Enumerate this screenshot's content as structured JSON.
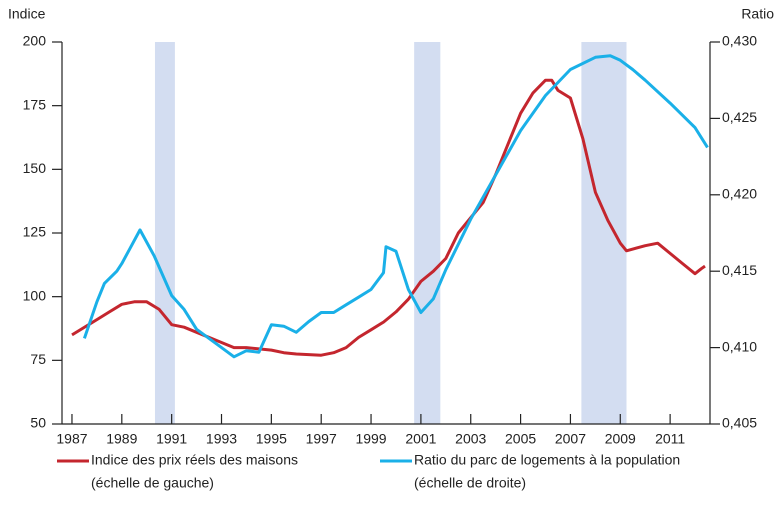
{
  "chart_data": {
    "type": "line",
    "left_axis_label": "Indice",
    "right_axis_label": "Ratio",
    "xlim": [
      1986.6,
      2012.6
    ],
    "xticks": [
      1987,
      1989,
      1991,
      1993,
      1995,
      1997,
      1999,
      2001,
      2003,
      2005,
      2007,
      2009,
      2011
    ],
    "ylim": [
      50,
      200
    ],
    "yticks": [
      50,
      75,
      100,
      125,
      150,
      175,
      200
    ],
    "y2lim": [
      0.405,
      0.43
    ],
    "y2ticks": [
      {
        "value": 0.405,
        "label": "0,405"
      },
      {
        "value": 0.41,
        "label": "0,410"
      },
      {
        "value": 0.415,
        "label": "0,415"
      },
      {
        "value": 0.42,
        "label": "0,420"
      },
      {
        "value": 0.425,
        "label": "0,425"
      },
      {
        "value": 0.43,
        "label": "0,430"
      }
    ],
    "shaded_periods": [
      [
        1990.33,
        1991.13
      ],
      [
        2000.73,
        2001.78
      ],
      [
        2007.44,
        2009.25
      ]
    ],
    "shade_color": "#d3ddf1",
    "series": [
      {
        "name": "Indice des prix réels des maisons",
        "note": "(échelle de gauche)",
        "color": "#c4262e",
        "axis": "y",
        "x": [
          1987,
          1988,
          1988.5,
          1989,
          1989.5,
          1990,
          1990.5,
          1991,
          1991.5,
          1992,
          1993,
          1993.5,
          1994,
          1995,
          1995.5,
          1996,
          1997,
          1997.5,
          1998,
          1998.5,
          1999,
          1999.5,
          2000,
          2000.5,
          2001,
          2001.5,
          2002,
          2002.5,
          2003,
          2003.5,
          2004,
          2004.5,
          2005,
          2005.5,
          2006,
          2006.25,
          2006.5,
          2007,
          2007.5,
          2008,
          2008.5,
          2009,
          2009.25,
          2010,
          2010.5,
          2011,
          2011.5,
          2012,
          2012.25,
          2012.4
        ],
        "values": [
          85,
          91,
          94,
          97,
          98,
          98,
          95,
          89,
          88,
          86,
          82,
          80,
          80,
          79,
          78,
          77.5,
          77,
          78,
          80,
          84,
          87,
          90,
          94,
          99,
          106,
          110,
          115,
          125,
          131,
          137,
          148,
          160,
          172,
          180,
          185,
          185,
          181,
          178,
          162,
          141,
          130,
          121,
          118,
          120,
          121,
          117,
          113,
          109,
          111,
          112
        ]
      },
      {
        "name": "Ratio du parc de logements à la population",
        "note": "(échelle de droite)",
        "color": "#1ab0e8",
        "axis": "y2",
        "x": [
          1987.5,
          1988,
          1988.3,
          1988.8,
          1989,
          1989.73,
          1990.3,
          1991,
          1991.5,
          1992,
          1993,
          1993.5,
          1994,
          1994.5,
          1995,
          1995.5,
          1996,
          1996.5,
          1997,
          1997.5,
          1998,
          1998.5,
          1999,
          1999.5,
          1999.6,
          2000,
          2000.5,
          2001,
          2001.5,
          2002,
          2003,
          2004,
          2005,
          2006,
          2007,
          2008,
          2008.6,
          2009,
          2009.5,
          2010,
          2011,
          2012,
          2012.5
        ],
        "values": [
          0.4106,
          0.413,
          0.4142,
          0.415,
          0.4155,
          0.4177,
          0.416,
          0.4134,
          0.4125,
          0.4112,
          0.41,
          0.4094,
          0.4098,
          0.4097,
          0.4115,
          0.4114,
          0.411,
          0.4117,
          0.4123,
          0.4123,
          0.4128,
          0.4133,
          0.4138,
          0.4149,
          0.4166,
          0.4163,
          0.4138,
          0.4123,
          0.4132,
          0.4151,
          0.4184,
          0.4213,
          0.4242,
          0.4265,
          0.4282,
          0.429,
          0.4291,
          0.4288,
          0.4282,
          0.4275,
          0.426,
          0.4244,
          0.4231
        ]
      }
    ]
  }
}
